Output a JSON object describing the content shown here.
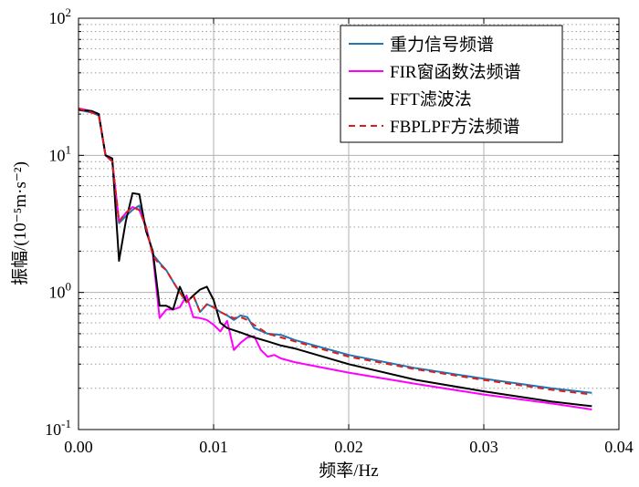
{
  "chart_data": {
    "type": "line",
    "xlabel": "频率/Hz",
    "ylabel": "振幅/(10⁻⁵m·s⁻²)",
    "xlim": [
      0,
      0.04
    ],
    "ylim": [
      0.1,
      100
    ],
    "yscale": "log",
    "grid": true,
    "legend_position": "top-right",
    "x_tick_labels": [
      "0.00",
      "0.01",
      "0.02",
      "0.03",
      "0.04"
    ],
    "y_tick_labels": [
      {
        "base": "10",
        "exp": "-1"
      },
      {
        "base": "10",
        "exp": "0"
      },
      {
        "base": "10",
        "exp": "1"
      },
      {
        "base": "10",
        "exp": "2"
      }
    ],
    "series": [
      {
        "name": "重力信号频谱",
        "color": "#1f77b4",
        "dash": "solid",
        "x": [
          0.0,
          0.001,
          0.0015,
          0.002,
          0.0025,
          0.003,
          0.0035,
          0.004,
          0.0045,
          0.005,
          0.0055,
          0.006,
          0.0065,
          0.007,
          0.0075,
          0.008,
          0.0085,
          0.009,
          0.0095,
          0.01,
          0.0105,
          0.011,
          0.0115,
          0.012,
          0.0125,
          0.013,
          0.014,
          0.015,
          0.016,
          0.02,
          0.025,
          0.03,
          0.035,
          0.038
        ],
        "y": [
          21.5,
          20.5,
          19.5,
          10,
          9,
          3.2,
          3.6,
          4.0,
          4.3,
          3.0,
          1.9,
          1.65,
          1.45,
          1.2,
          1.0,
          0.85,
          0.95,
          0.72,
          0.82,
          0.78,
          0.72,
          0.68,
          0.63,
          0.68,
          0.66,
          0.55,
          0.5,
          0.49,
          0.45,
          0.35,
          0.28,
          0.235,
          0.2,
          0.185
        ]
      },
      {
        "name": "FIR窗函数法频谱",
        "color": "#ff00ff",
        "dash": "solid",
        "x": [
          0.0,
          0.001,
          0.0015,
          0.002,
          0.0025,
          0.003,
          0.0035,
          0.004,
          0.0045,
          0.005,
          0.0055,
          0.006,
          0.0065,
          0.007,
          0.0075,
          0.008,
          0.0085,
          0.009,
          0.0095,
          0.01,
          0.0105,
          0.011,
          0.0115,
          0.012,
          0.0125,
          0.013,
          0.0135,
          0.014,
          0.0145,
          0.015,
          0.016,
          0.02,
          0.025,
          0.03,
          0.035,
          0.038
        ],
        "y": [
          22,
          21,
          20,
          10,
          9,
          3.3,
          3.8,
          4.2,
          4.0,
          3.0,
          1.9,
          0.65,
          0.75,
          0.75,
          0.78,
          0.95,
          0.66,
          0.65,
          0.63,
          0.58,
          0.52,
          0.62,
          0.38,
          0.43,
          0.47,
          0.48,
          0.38,
          0.34,
          0.35,
          0.33,
          0.31,
          0.26,
          0.215,
          0.18,
          0.155,
          0.14
        ]
      },
      {
        "name": "FFT滤波法",
        "color": "#000000",
        "dash": "solid",
        "x": [
          0.0,
          0.001,
          0.0015,
          0.002,
          0.0025,
          0.003,
          0.0035,
          0.004,
          0.0045,
          0.005,
          0.0055,
          0.006,
          0.0065,
          0.007,
          0.0075,
          0.008,
          0.0085,
          0.009,
          0.0095,
          0.01,
          0.0105,
          0.011,
          0.012,
          0.013,
          0.014,
          0.015,
          0.016,
          0.02,
          0.025,
          0.03,
          0.035,
          0.038
        ],
        "y": [
          21.5,
          21,
          20,
          10,
          9.5,
          1.7,
          3.3,
          5.3,
          5.2,
          2.8,
          2.0,
          0.8,
          0.8,
          0.75,
          1.1,
          0.85,
          0.95,
          1.05,
          1.1,
          0.88,
          0.6,
          0.55,
          0.51,
          0.47,
          0.44,
          0.41,
          0.39,
          0.3,
          0.23,
          0.19,
          0.16,
          0.148
        ]
      },
      {
        "name": "FBPLPF方法频谱",
        "color": "#dd1c1c",
        "dash": "dashed",
        "x": [
          0.0,
          0.001,
          0.0015,
          0.002,
          0.0025,
          0.003,
          0.0035,
          0.004,
          0.0045,
          0.005,
          0.0055,
          0.006,
          0.0065,
          0.007,
          0.0075,
          0.008,
          0.0085,
          0.009,
          0.0095,
          0.01,
          0.0105,
          0.011,
          0.0115,
          0.012,
          0.0125,
          0.013,
          0.014,
          0.015,
          0.016,
          0.02,
          0.025,
          0.03,
          0.035,
          0.038
        ],
        "y": [
          22,
          20.5,
          19.5,
          10,
          9,
          3.3,
          3.8,
          4.2,
          4.0,
          3.0,
          1.85,
          1.6,
          1.45,
          1.2,
          1.0,
          0.85,
          0.95,
          0.72,
          0.82,
          0.78,
          0.72,
          0.68,
          0.65,
          0.66,
          0.63,
          0.58,
          0.5,
          0.47,
          0.44,
          0.34,
          0.275,
          0.23,
          0.195,
          0.18
        ]
      }
    ]
  }
}
